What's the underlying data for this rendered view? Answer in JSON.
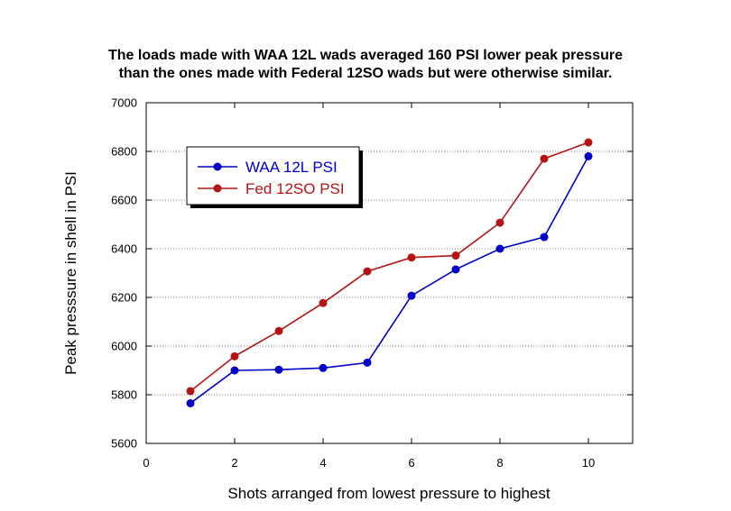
{
  "chart_data": {
    "type": "line",
    "title": [
      "The loads made with WAA 12L wads averaged 160 PSI lower peak pressure",
      "than the ones made with Federal 12SO wads but were otherwise similar."
    ],
    "xlabel": "Shots arranged from lowest pressure to highest",
    "ylabel": "Peak presssure in shell in PSI",
    "xlim": [
      0,
      11
    ],
    "ylim": [
      5600,
      7000
    ],
    "xticks": [
      0,
      2,
      4,
      6,
      8,
      10
    ],
    "yticks": [
      5600,
      5800,
      6000,
      6200,
      6400,
      6600,
      6800,
      7000
    ],
    "grid": "horizontal",
    "legend_position": "upper-left",
    "x": [
      1,
      2,
      3,
      4,
      5,
      6,
      7,
      8,
      9,
      10
    ],
    "series": [
      {
        "name": "WAA 12L PSI",
        "color": "#0000c8",
        "values": [
          5765,
          5900,
          5903,
          5910,
          5932,
          6207,
          6315,
          6400,
          6448,
          6780
        ]
      },
      {
        "name": "Fed 12SO PSI",
        "color": "#b41414",
        "values": [
          5815,
          5958,
          6062,
          6177,
          6307,
          6364,
          6372,
          6507,
          6770,
          6837
        ]
      }
    ]
  }
}
